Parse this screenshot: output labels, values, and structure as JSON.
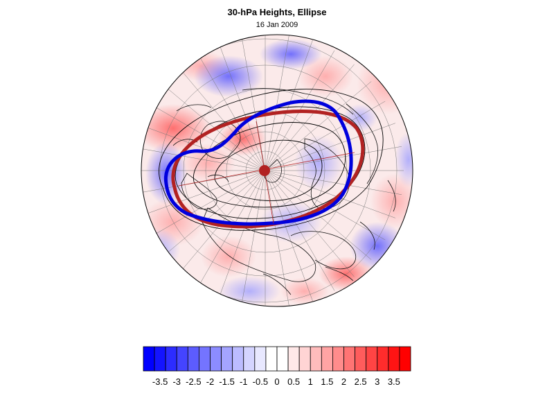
{
  "figure": {
    "title": "30-hPa Heights, Ellipse",
    "subtitle": "16 Jan 2009"
  },
  "map": {
    "projection": "polar stereographic, northern hemisphere",
    "field": "standardized height anomaly (shaded)",
    "contours": "30-hPa height contours (thin black)",
    "ellipses": [
      {
        "name": "fitted ellipse",
        "color": "#0000dd"
      },
      {
        "name": "reference ellipse",
        "color": "#b22222"
      }
    ],
    "center_marker_color": "#b22222"
  },
  "colorbar": {
    "labels": [
      "-3.5",
      "-3",
      "-2.5",
      "-2",
      "-1.5",
      "-1",
      "-0.5",
      "0",
      "0.5",
      "1",
      "1.5",
      "2",
      "2.5",
      "3",
      "3.5"
    ],
    "colors": [
      "#0000ff",
      "#1414ff",
      "#2c2cff",
      "#4444ff",
      "#5c5cff",
      "#7474ff",
      "#8c8cff",
      "#a4a4ff",
      "#bcbcff",
      "#d4d4ff",
      "#e8e8ff",
      "#ffffff",
      "#ffffff",
      "#ffe8e8",
      "#ffd4d4",
      "#ffbcbc",
      "#ffa4a4",
      "#ff8c8c",
      "#ff7474",
      "#ff5c5c",
      "#ff4444",
      "#ff2c2c",
      "#ff1414",
      "#ff0000"
    ],
    "range": [
      -4,
      4
    ]
  }
}
